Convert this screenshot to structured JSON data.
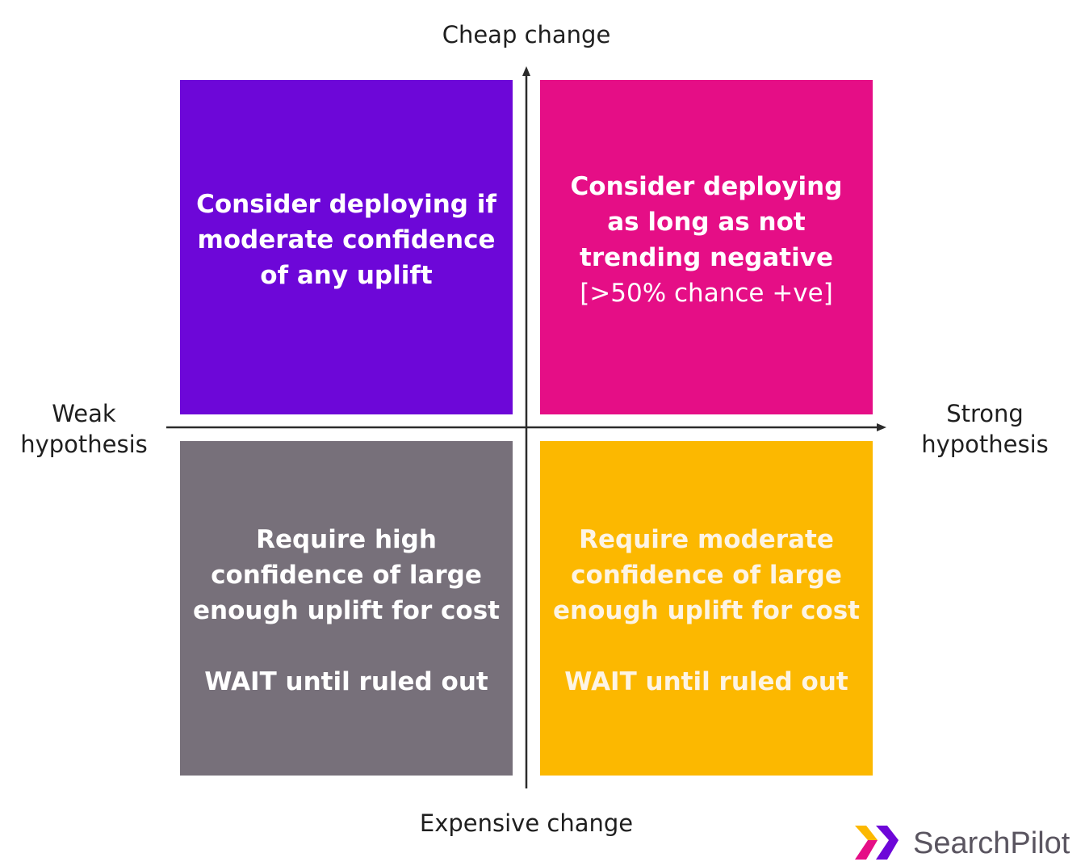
{
  "axes": {
    "top": "Cheap change",
    "bottom": "Expensive change",
    "left": [
      "Weak",
      "hypothesis"
    ],
    "right": [
      "Strong",
      "hypothesis"
    ]
  },
  "quadrants": {
    "top_left": {
      "text": "Consider deploying if moderate confidence of any uplift",
      "color": "#6d07d8"
    },
    "top_right": {
      "text": "Consider deploying as long as not trending negative",
      "note": "[>50% chance +ve]",
      "color": "#e50e86"
    },
    "bottom_left": {
      "text": "Require high confidence of large enough uplift for cost",
      "action": "WAIT until ruled out",
      "color": "#77707a"
    },
    "bottom_right": {
      "text": "Require moderate confidence of large enough uplift for cost",
      "action": "WAIT until ruled out",
      "color": "#fcb800"
    }
  },
  "logo": {
    "name": "SearchPilot",
    "colors": [
      "#fcb800",
      "#e50e86",
      "#6d07d8"
    ]
  }
}
